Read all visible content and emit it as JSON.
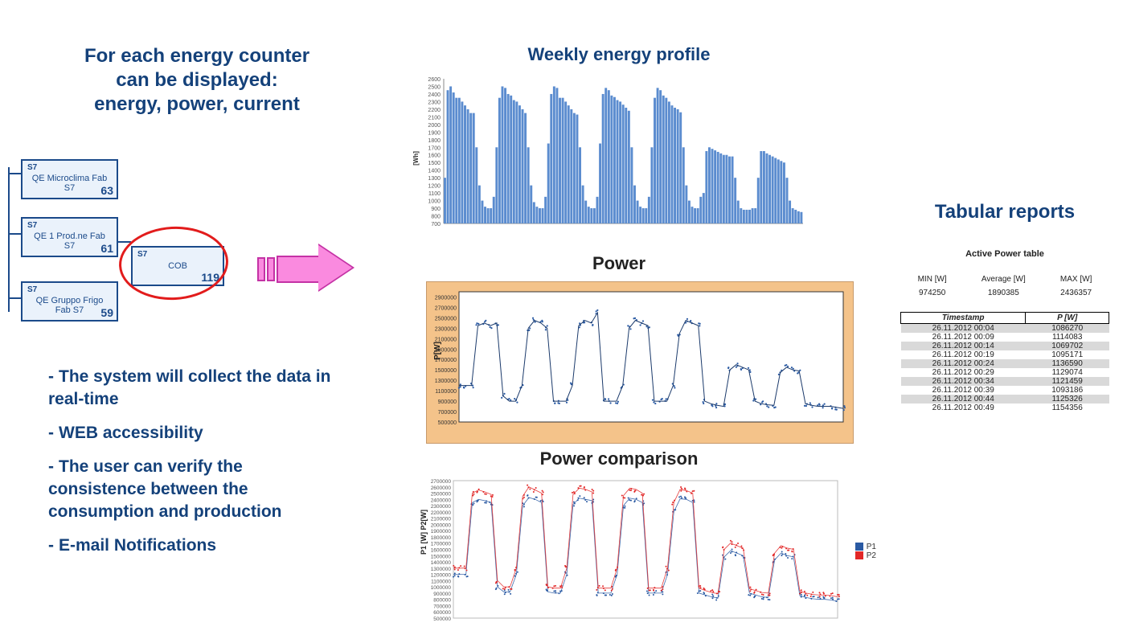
{
  "heading": {
    "line1": "For each energy counter",
    "line2": "can be displayed:",
    "line3": "energy, power, current",
    "fontsize": 24
  },
  "tree": {
    "tag": "S7",
    "boxes": [
      {
        "label": "QE Microclima Fab S7",
        "num": "63"
      },
      {
        "label": "QE 1 Prod.ne Fab S7",
        "num": "61"
      },
      {
        "label": "QE Gruppo Frigo Fab S7",
        "num": "59"
      }
    ],
    "child": {
      "label": "COB",
      "num": "119"
    },
    "line_color": "#1b4a8a",
    "box_bg": "#eaf2fb",
    "ring_color": "#e21c1c"
  },
  "arrow": {
    "fill": "#fa8adf",
    "stroke": "#c432a5"
  },
  "bullets": [
    "The system will collect the data in real-time",
    "WEB accessibility",
    "The user can verify the consistence between the consumption and production",
    "E-mail Notifications"
  ],
  "bullets_fontsize": 21,
  "weekly": {
    "title": "Weekly energy profile",
    "ylabel": "[Wh]",
    "ylim": [
      700,
      2600
    ],
    "ytick_step": 100,
    "bar_color": "#5b8ccf",
    "background": "#ffffff",
    "values": [
      1300,
      2450,
      2500,
      2420,
      2350,
      2350,
      2300,
      2250,
      2200,
      2150,
      2150,
      1700,
      1200,
      1000,
      920,
      900,
      900,
      1050,
      1700,
      2350,
      2500,
      2480,
      2400,
      2380,
      2320,
      2300,
      2250,
      2200,
      2150,
      1700,
      1200,
      980,
      920,
      900,
      900,
      1050,
      1750,
      2400,
      2500,
      2480,
      2350,
      2350,
      2300,
      2250,
      2200,
      2150,
      2130,
      1700,
      1200,
      1000,
      920,
      900,
      900,
      1050,
      1750,
      2400,
      2480,
      2450,
      2380,
      2360,
      2320,
      2300,
      2260,
      2220,
      2180,
      1700,
      1200,
      1000,
      920,
      900,
      900,
      1050,
      1700,
      2350,
      2480,
      2450,
      2380,
      2350,
      2300,
      2250,
      2220,
      2200,
      2160,
      1700,
      1200,
      1000,
      920,
      900,
      900,
      1050,
      1100,
      1650,
      1700,
      1680,
      1660,
      1640,
      1620,
      1600,
      1600,
      1580,
      1580,
      1300,
      1000,
      900,
      880,
      880,
      880,
      900,
      900,
      1300,
      1650,
      1650,
      1620,
      1600,
      1580,
      1560,
      1540,
      1520,
      1500,
      1300,
      1000,
      900,
      880,
      860,
      850
    ]
  },
  "power": {
    "title": "Power",
    "ylabel": "P[W]",
    "background": "#f4c38a",
    "plot_bg": "#ffffff",
    "line_color": "#1b3a6b",
    "dot_color": "#2a5aa3",
    "ylim": [
      500000,
      3000000
    ],
    "ytick_step": 200000,
    "values": [
      1200000,
      1200000,
      1200000,
      2350000,
      2400000,
      2350000,
      2400000,
      1000000,
      900000,
      900000,
      1200000,
      2300000,
      2450000,
      2400000,
      2300000,
      900000,
      900000,
      900000,
      1200000,
      2350000,
      2450000,
      2400000,
      2600000,
      900000,
      900000,
      900000,
      1200000,
      2300000,
      2450000,
      2400000,
      2350000,
      900000,
      900000,
      900000,
      1200000,
      2200000,
      2450000,
      2400000,
      2350000,
      900000,
      850000,
      820000,
      800000,
      1500000,
      1600000,
      1550000,
      1500000,
      900000,
      850000,
      830000,
      820000,
      1450000,
      1550000,
      1500000,
      1480000,
      850000,
      820000,
      800000,
      800000,
      800000,
      780000,
      760000
    ]
  },
  "compare": {
    "title": "Power comparison",
    "ylabel": "P1 [W] P2[W]",
    "ylim": [
      500000,
      2700000
    ],
    "ytick_step": 100000,
    "series": [
      {
        "name": "P1",
        "color": "#2a5aa3",
        "values": [
          1200000,
          1200000,
          1200000,
          2350000,
          2400000,
          2380000,
          2350000,
          1000000,
          920000,
          920000,
          1200000,
          2300000,
          2430000,
          2400000,
          2350000,
          920000,
          900000,
          900000,
          1200000,
          2320000,
          2420000,
          2400000,
          2380000,
          900000,
          900000,
          900000,
          1200000,
          2300000,
          2420000,
          2400000,
          2350000,
          900000,
          900000,
          900000,
          1200000,
          2200000,
          2410000,
          2400000,
          2350000,
          900000,
          870000,
          840000,
          820000,
          1480000,
          1580000,
          1540000,
          1500000,
          900000,
          870000,
          840000,
          830000,
          1430000,
          1540000,
          1500000,
          1480000,
          860000,
          830000,
          810000,
          800000,
          800000,
          790000,
          770000
        ]
      },
      {
        "name": "P2",
        "color": "#e22727",
        "values": [
          1300000,
          1300000,
          1300000,
          2500000,
          2550000,
          2520000,
          2480000,
          1100000,
          1000000,
          1000000,
          1300000,
          2450000,
          2600000,
          2550000,
          2500000,
          1000000,
          980000,
          980000,
          1300000,
          2480000,
          2580000,
          2560000,
          2520000,
          980000,
          980000,
          980000,
          1300000,
          2460000,
          2580000,
          2560000,
          2500000,
          980000,
          980000,
          980000,
          1300000,
          2350000,
          2560000,
          2540000,
          2500000,
          980000,
          940000,
          910000,
          890000,
          1600000,
          1700000,
          1660000,
          1620000,
          970000,
          940000,
          910000,
          900000,
          1540000,
          1660000,
          1620000,
          1600000,
          930000,
          900000,
          880000,
          870000,
          870000,
          860000,
          840000
        ]
      }
    ]
  },
  "table": {
    "heading": "Tabular reports",
    "title": "Active Power table",
    "stats": [
      {
        "label": "MIN [W]",
        "value": "974250"
      },
      {
        "label": "Average [W]",
        "value": "1890385"
      },
      {
        "label": "MAX [W]",
        "value": "2436357"
      }
    ],
    "columns": [
      "Timestamp",
      "P [W]"
    ],
    "rows": [
      [
        "26.11.2012 00:04",
        "1086270"
      ],
      [
        "26.11.2012 00:09",
        "1114083"
      ],
      [
        "26.11.2012 00:14",
        "1069702"
      ],
      [
        "26.11.2012 00:19",
        "1095171"
      ],
      [
        "26.11.2012 00:24",
        "1136590"
      ],
      [
        "26.11.2012 00:29",
        "1129074"
      ],
      [
        "26.11.2012 00:34",
        "1121459"
      ],
      [
        "26.11.2012 00:39",
        "1093186"
      ],
      [
        "26.11.2012 00:44",
        "1125326"
      ],
      [
        "26.11.2012 00:49",
        "1154356"
      ]
    ],
    "band_bg": "#d9d9d9"
  }
}
